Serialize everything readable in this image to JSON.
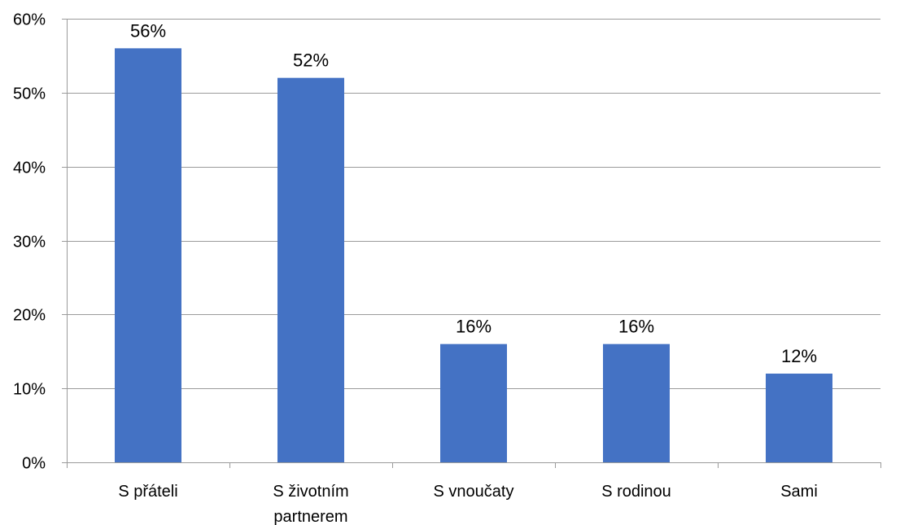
{
  "chart_data": {
    "type": "bar",
    "title": "",
    "xlabel": "",
    "ylabel": "",
    "categories": [
      "S přáteli",
      "S životním partnerem",
      "S vnoučaty",
      "S rodinou",
      "Sami"
    ],
    "category_lines": [
      [
        "S přáteli"
      ],
      [
        "S životním",
        "partnerem"
      ],
      [
        "S vnoučaty"
      ],
      [
        "S rodinou"
      ],
      [
        "Sami"
      ]
    ],
    "values": [
      56,
      52,
      16,
      16,
      12
    ],
    "data_labels": [
      "56%",
      "52%",
      "16%",
      "16%",
      "12%"
    ],
    "ylim": [
      0,
      60
    ],
    "yticks": [
      0,
      10,
      20,
      30,
      40,
      50,
      60
    ],
    "ytick_labels": [
      "0%",
      "10%",
      "20%",
      "30%",
      "40%",
      "50%",
      "60%"
    ],
    "grid": true,
    "legend": "none",
    "bar_color": "#4472C4"
  }
}
